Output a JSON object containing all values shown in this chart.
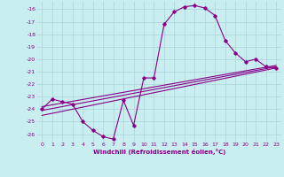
{
  "xlabel": "Windchill (Refroidissement éolien,°C)",
  "background_color": "#c8eef0",
  "grid_color": "#b0d8dc",
  "line_color": "#880088",
  "xlim": [
    -0.5,
    23.5
  ],
  "ylim": [
    -26.6,
    -15.4
  ],
  "xticks": [
    0,
    1,
    2,
    3,
    4,
    5,
    6,
    7,
    8,
    9,
    10,
    11,
    12,
    13,
    14,
    15,
    16,
    17,
    18,
    19,
    20,
    21,
    22,
    23
  ],
  "yticks": [
    -16,
    -17,
    -18,
    -19,
    -20,
    -21,
    -22,
    -23,
    -24,
    -25,
    -26
  ],
  "curve_x": [
    0,
    1,
    2,
    3,
    4,
    5,
    6,
    7,
    8,
    9,
    10,
    11,
    12,
    13,
    14,
    15,
    16,
    17,
    18,
    19,
    20,
    21,
    22,
    23
  ],
  "curve_y": [
    -24.0,
    -23.2,
    -23.4,
    -23.6,
    -25.0,
    -25.7,
    -26.2,
    -26.4,
    -23.3,
    -25.3,
    -21.5,
    -21.5,
    -17.2,
    -16.2,
    -15.8,
    -15.7,
    -15.9,
    -16.5,
    -18.5,
    -19.5,
    -20.2,
    -20.0,
    -20.6,
    -20.7
  ],
  "line1_x": [
    0,
    23
  ],
  "line1_y": [
    -23.8,
    -20.5
  ],
  "line2_x": [
    0,
    23
  ],
  "line2_y": [
    -24.1,
    -20.6
  ],
  "line3_x": [
    0,
    23
  ],
  "line3_y": [
    -24.5,
    -20.7
  ]
}
